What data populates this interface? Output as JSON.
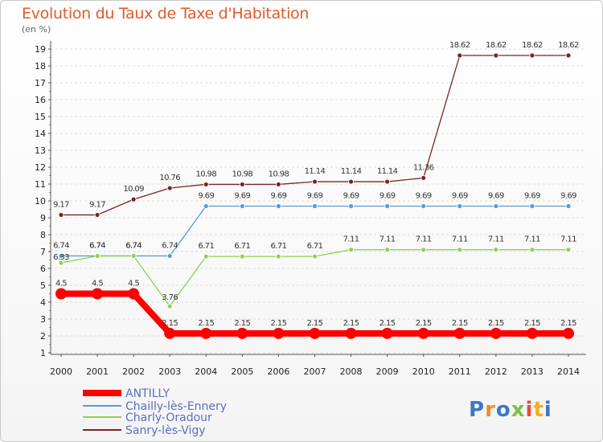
{
  "header": {
    "title": "Evolution du Taux de Taxe d'Habitation",
    "unit": "(en %)"
  },
  "logo": {
    "text": "Proxiti"
  },
  "chart_data": {
    "type": "line",
    "title": "Evolution du Taux de Taxe d'Habitation",
    "ylabel": "(en %)",
    "xlabel": "",
    "x": [
      "2000",
      "2001",
      "2002",
      "2003",
      "2004",
      "2005",
      "2006",
      "2007",
      "2008",
      "2009",
      "2010",
      "2011",
      "2012",
      "2013",
      "2014"
    ],
    "ylim": [
      1,
      19
    ],
    "yticks": [
      1,
      2,
      3,
      4,
      5,
      6,
      7,
      8,
      9,
      10,
      11,
      12,
      13,
      14,
      15,
      16,
      17,
      18,
      19
    ],
    "grid": "horizontal",
    "legend_position": "bottom-left",
    "series": [
      {
        "name": "ANTILLY",
        "color": "#ff0000",
        "values": [
          4.5,
          4.5,
          4.5,
          2.15,
          2.15,
          2.15,
          2.15,
          2.15,
          2.15,
          2.15,
          2.15,
          2.15,
          2.15,
          2.15,
          2.15
        ],
        "labels": [
          "4.5",
          "4.5",
          "4.5",
          "2.15",
          "2.15",
          "2.15",
          "2.15",
          "2.15",
          "2.15",
          "2.15",
          "2.15",
          "2.15",
          "2.15",
          "2.15",
          "2.15"
        ]
      },
      {
        "name": "Chailly-lès-Ennery",
        "color": "#5b9bd5",
        "values": [
          6.74,
          6.74,
          6.74,
          6.74,
          9.69,
          9.69,
          9.69,
          9.69,
          9.69,
          9.69,
          9.69,
          9.69,
          9.69,
          9.69,
          9.69
        ],
        "labels": [
          "6.74",
          "6.74",
          "6.74",
          "6.74",
          "9.69",
          "9.69",
          "9.69",
          "9.69",
          "9.69",
          "9.69",
          "9.69",
          "9.69",
          "9.69",
          "9.69",
          "9.69"
        ]
      },
      {
        "name": "Charly-Oradour",
        "color": "#92d050",
        "values": [
          6.33,
          6.74,
          6.74,
          3.76,
          6.71,
          6.71,
          6.71,
          6.71,
          7.11,
          7.11,
          7.11,
          7.11,
          7.11,
          7.11,
          7.11
        ],
        "labels": [
          "6.33",
          "6.74",
          "6.74",
          "3.76",
          "6.71",
          "6.71",
          "6.71",
          "6.71",
          "7.11",
          "7.11",
          "7.11",
          "7.11",
          "7.11",
          "7.11",
          "7.11"
        ]
      },
      {
        "name": "Sanry-lès-Vigy",
        "color": "#7b2424",
        "values": [
          9.17,
          9.17,
          10.09,
          10.76,
          10.98,
          10.98,
          10.98,
          11.14,
          11.14,
          11.14,
          11.36,
          18.62,
          18.62,
          18.62,
          18.62
        ],
        "labels": [
          "9.17",
          "9.17",
          "10.09",
          "10.76",
          "10.98",
          "10.98",
          "10.98",
          "11.14",
          "11.14",
          "11.14",
          "11.36",
          "18.62",
          "18.62",
          "18.62",
          "18.62"
        ]
      }
    ]
  }
}
